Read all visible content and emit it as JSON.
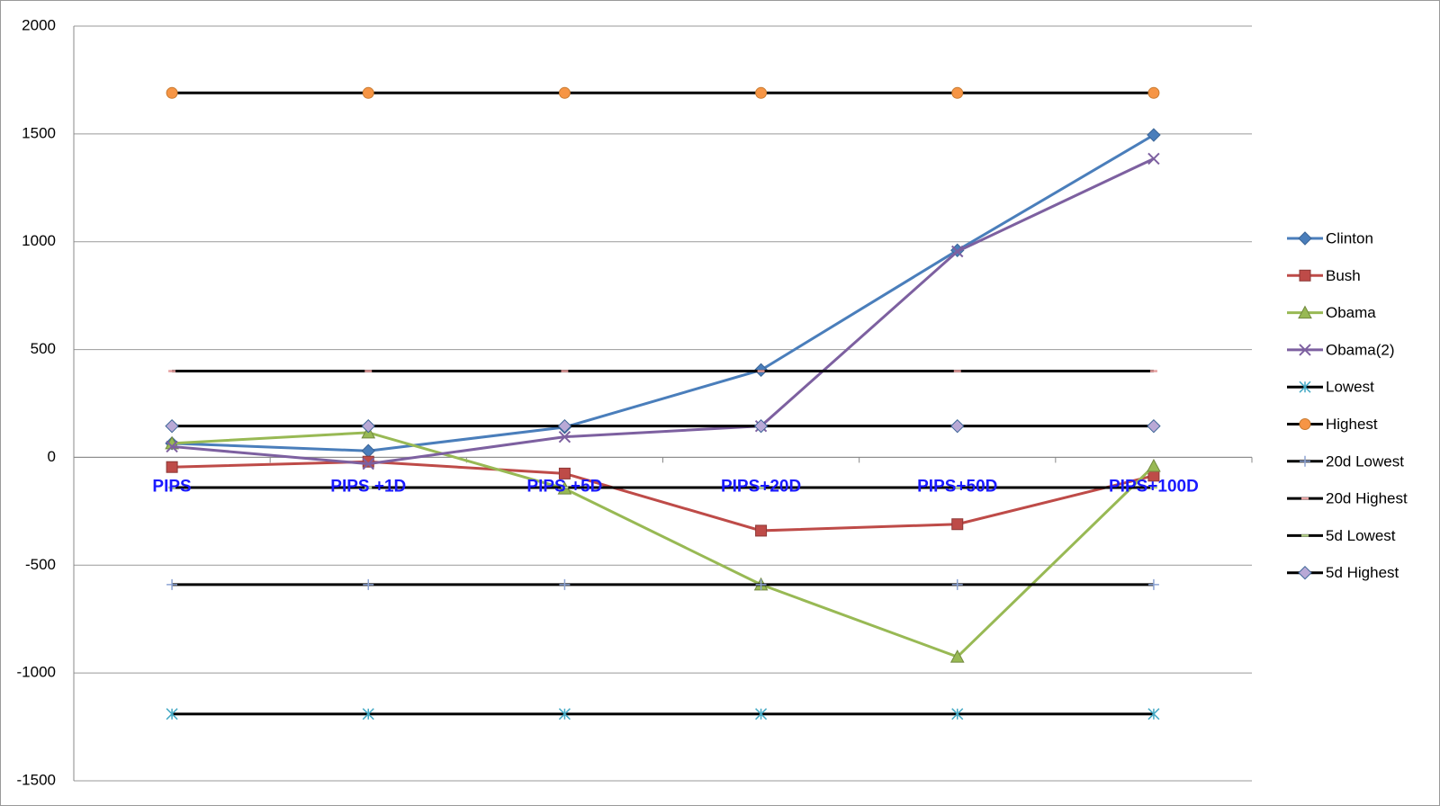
{
  "chart_data": {
    "type": "line",
    "categories": [
      "PIPS",
      "PIPS +1D",
      "PIPS +5D",
      "PIPS+20D",
      "PIPS+50D",
      "PIPS+100D"
    ],
    "ylim": [
      -1500,
      2000
    ],
    "yticks": [
      -1500,
      -1000,
      -500,
      0,
      500,
      1000,
      1500,
      2000
    ],
    "grid": true,
    "legend": "right",
    "series": [
      {
        "name": "Clinton",
        "color": "#4a7ebb",
        "line_color": "#4a7ebb",
        "marker": "diamond",
        "values": [
          65,
          30,
          140,
          405,
          960,
          1495
        ]
      },
      {
        "name": "Bush",
        "color": "#be4b48",
        "line_color": "#be4b48",
        "marker": "square",
        "values": [
          -45,
          -20,
          -75,
          -340,
          -310,
          -85
        ]
      },
      {
        "name": "Obama",
        "color": "#98b954",
        "line_color": "#98b954",
        "marker": "triangle",
        "values": [
          65,
          115,
          -145,
          -590,
          -925,
          -40
        ]
      },
      {
        "name": "Obama(2)",
        "color": "#7d60a0",
        "line_color": "#7d60a0",
        "marker": "x",
        "values": [
          50,
          -30,
          95,
          145,
          955,
          1385
        ]
      },
      {
        "name": "Lowest",
        "color": "#46aac5",
        "line_color": "#000000",
        "marker": "star",
        "values": [
          -1190,
          -1190,
          -1190,
          -1190,
          -1190,
          -1190
        ]
      },
      {
        "name": "Highest",
        "color": "#f69545",
        "line_color": "#000000",
        "marker": "circle",
        "values": [
          1690,
          1690,
          1690,
          1690,
          1690,
          1690
        ]
      },
      {
        "name": "20d Lowest",
        "color": "#8da4d4",
        "line_color": "#000000",
        "marker": "plus",
        "values": [
          -590,
          -590,
          -590,
          -590,
          -590,
          -590
        ]
      },
      {
        "name": "20d Highest",
        "color": "#e6a0a0",
        "line_color": "#000000",
        "marker": "dash",
        "values": [
          400,
          400,
          400,
          400,
          400,
          400
        ]
      },
      {
        "name": "5d Lowest",
        "color": "#b3cf8a",
        "line_color": "#000000",
        "marker": "dash",
        "values": [
          -140,
          -140,
          -140,
          -140,
          -140,
          -140
        ]
      },
      {
        "name": "5d Highest",
        "color": "#b9a9d6",
        "line_color": "#000000",
        "marker": "diamond",
        "values": [
          145,
          145,
          145,
          145,
          145,
          145
        ]
      }
    ]
  }
}
